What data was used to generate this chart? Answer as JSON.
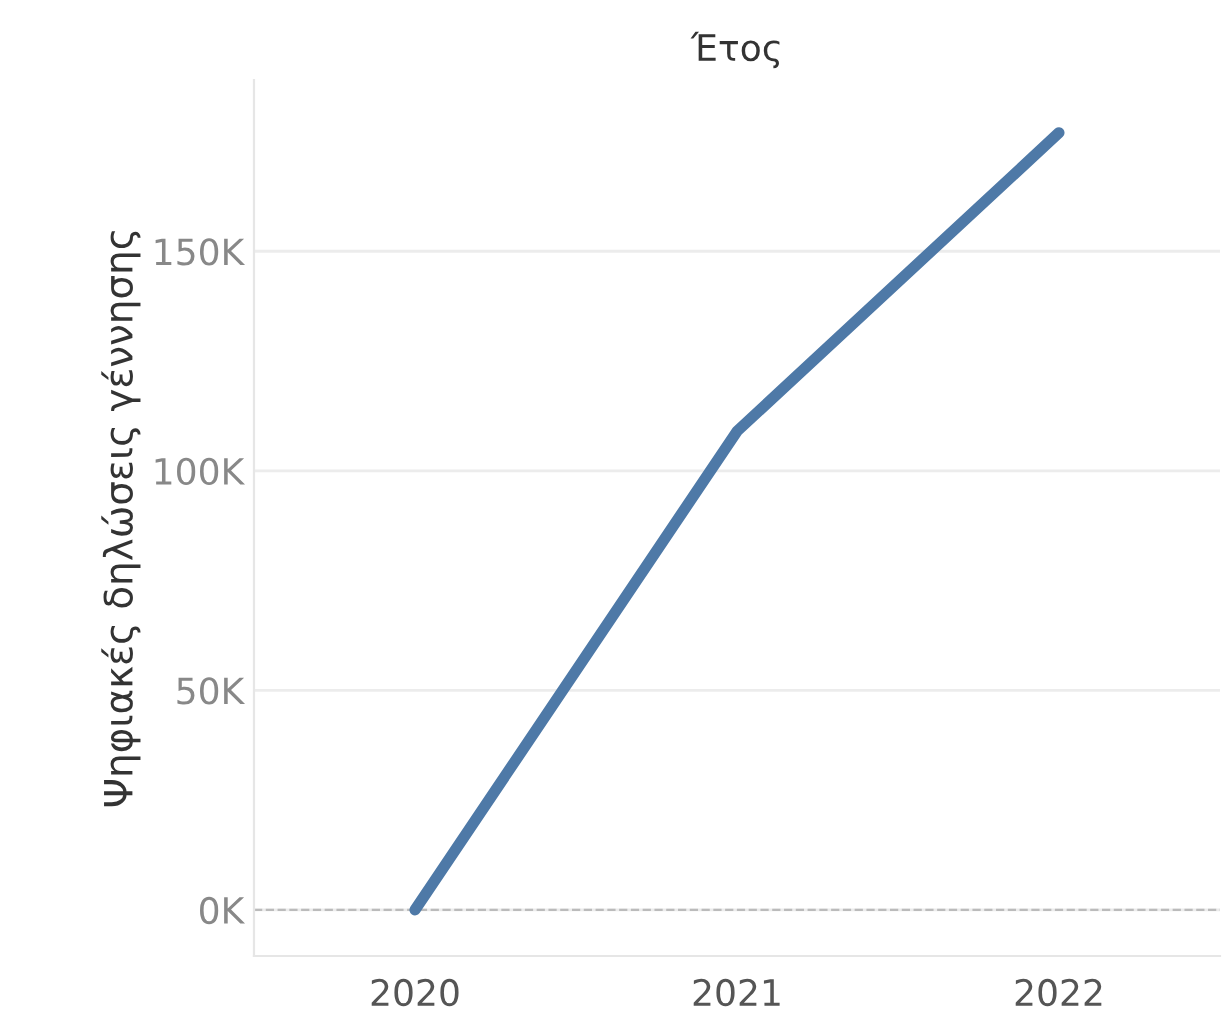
{
  "chart_data": {
    "type": "line",
    "title": "Έτος",
    "ylabel": "Ψηφιακές δηλώσεις γέννησης",
    "categories": [
      "2020",
      "2021",
      "2022"
    ],
    "series": [
      {
        "color": "#4e79a7",
        "values": [
          0,
          109000,
          177000
        ]
      }
    ],
    "ylim": [
      -10500,
      189000
    ],
    "yticks": [
      {
        "value": 0,
        "label": "0K"
      },
      {
        "value": 50000,
        "label": "50K"
      },
      {
        "value": 100000,
        "label": "100K"
      },
      {
        "value": 150000,
        "label": "150K"
      }
    ],
    "grid": "y",
    "marker": "none",
    "line_style": "solid",
    "ref_lines": [
      {
        "axis": "y",
        "value": 0,
        "color": "#bbbbbb",
        "line_style": "dashed"
      }
    ]
  }
}
